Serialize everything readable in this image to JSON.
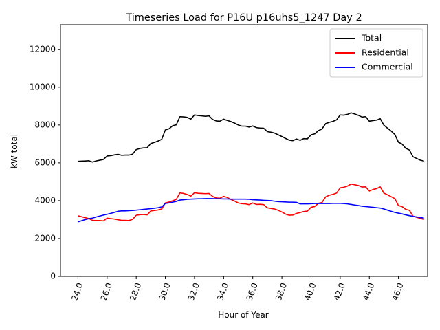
{
  "chart_data": {
    "type": "line",
    "title": "Timeseries Load for P16U p16uhs5_1247  Day 2",
    "xlabel": "Hour of Year",
    "ylabel": "kW total",
    "xlim": [
      22.8,
      48.0
    ],
    "ylim": [
      0,
      13300
    ],
    "x_ticks": [
      24,
      26,
      28,
      30,
      32,
      34,
      36,
      38,
      40,
      42,
      44,
      46
    ],
    "x_tick_labels": [
      "24.0",
      "26.0",
      "28.0",
      "30.0",
      "32.0",
      "34.0",
      "36.0",
      "38.0",
      "40.0",
      "42.0",
      "44.0",
      "46.0"
    ],
    "y_ticks": [
      0,
      2000,
      4000,
      6000,
      8000,
      10000,
      12000
    ],
    "y_tick_labels": [
      "0",
      "2000",
      "4000",
      "6000",
      "8000",
      "10000",
      "12000"
    ],
    "legend_position": "top-right",
    "x": [
      24.0,
      24.25,
      24.5,
      24.75,
      25.0,
      25.25,
      25.5,
      25.75,
      26.0,
      26.25,
      26.5,
      26.75,
      27.0,
      27.25,
      27.5,
      27.75,
      28.0,
      28.25,
      28.5,
      28.75,
      29.0,
      29.25,
      29.5,
      29.75,
      30.0,
      30.25,
      30.5,
      30.75,
      31.0,
      31.25,
      31.5,
      31.75,
      32.0,
      32.25,
      32.5,
      32.75,
      33.0,
      33.25,
      33.5,
      33.75,
      34.0,
      34.25,
      34.5,
      34.75,
      35.0,
      35.25,
      35.5,
      35.75,
      36.0,
      36.25,
      36.5,
      36.75,
      37.0,
      37.25,
      37.5,
      37.75,
      38.0,
      38.25,
      38.5,
      38.75,
      39.0,
      39.25,
      39.5,
      39.75,
      40.0,
      40.25,
      40.5,
      40.75,
      41.0,
      41.25,
      41.5,
      41.75,
      42.0,
      42.25,
      42.5,
      42.75,
      43.0,
      43.25,
      43.5,
      43.75,
      44.0,
      44.25,
      44.5,
      44.75,
      45.0,
      45.25,
      45.5,
      45.75,
      46.0,
      46.25,
      46.5,
      46.75,
      47.0,
      47.25,
      47.5,
      47.75
    ],
    "series": [
      {
        "name": "Total",
        "color": "#000000",
        "values": [
          6080,
          6090,
          6100,
          6110,
          6040,
          6100,
          6140,
          6180,
          6360,
          6380,
          6420,
          6450,
          6400,
          6410,
          6410,
          6460,
          6700,
          6760,
          6790,
          6800,
          7020,
          7080,
          7150,
          7240,
          7740,
          7800,
          7960,
          8010,
          8440,
          8430,
          8400,
          8310,
          8530,
          8500,
          8480,
          8460,
          8480,
          8290,
          8210,
          8200,
          8310,
          8240,
          8180,
          8100,
          8000,
          7940,
          7940,
          7890,
          7950,
          7860,
          7840,
          7830,
          7650,
          7620,
          7570,
          7480,
          7390,
          7290,
          7200,
          7170,
          7260,
          7190,
          7280,
          7270,
          7480,
          7530,
          7700,
          7790,
          8070,
          8140,
          8190,
          8270,
          8530,
          8520,
          8560,
          8640,
          8580,
          8510,
          8420,
          8440,
          8200,
          8230,
          8260,
          8330,
          7990,
          7830,
          7680,
          7500,
          7090,
          6990,
          6770,
          6680,
          6320,
          6230,
          6140,
          6090
        ]
      },
      {
        "name": "Residential",
        "color": "#ff0000",
        "values": [
          3200,
          3150,
          3100,
          3050,
          2960,
          2950,
          2950,
          2930,
          3080,
          3050,
          3030,
          2990,
          2960,
          2960,
          2950,
          3010,
          3230,
          3260,
          3270,
          3250,
          3460,
          3480,
          3510,
          3560,
          3880,
          3930,
          3990,
          4070,
          4410,
          4380,
          4330,
          4240,
          4420,
          4390,
          4380,
          4370,
          4380,
          4220,
          4140,
          4130,
          4230,
          4170,
          4060,
          3980,
          3880,
          3840,
          3830,
          3790,
          3880,
          3800,
          3810,
          3790,
          3620,
          3590,
          3560,
          3490,
          3400,
          3290,
          3230,
          3240,
          3330,
          3370,
          3430,
          3450,
          3650,
          3690,
          3860,
          3900,
          4200,
          4290,
          4330,
          4400,
          4680,
          4710,
          4770,
          4880,
          4840,
          4800,
          4720,
          4730,
          4510,
          4590,
          4640,
          4730,
          4400,
          4310,
          4210,
          4110,
          3740,
          3690,
          3540,
          3490,
          3180,
          3120,
          3060,
          3010
        ]
      },
      {
        "name": "Commercial",
        "color": "#0000ff",
        "values": [
          2880,
          2940,
          3000,
          3050,
          3080,
          3140,
          3190,
          3240,
          3280,
          3330,
          3380,
          3440,
          3460,
          3460,
          3470,
          3480,
          3500,
          3520,
          3540,
          3560,
          3580,
          3600,
          3630,
          3670,
          3850,
          3880,
          3920,
          3960,
          4030,
          4050,
          4070,
          4080,
          4090,
          4100,
          4100,
          4110,
          4110,
          4110,
          4100,
          4100,
          4090,
          4090,
          4080,
          4080,
          4080,
          4080,
          4080,
          4070,
          4050,
          4040,
          4030,
          4020,
          4010,
          4000,
          3970,
          3950,
          3940,
          3930,
          3920,
          3920,
          3910,
          3830,
          3830,
          3830,
          3840,
          3850,
          3850,
          3850,
          3850,
          3850,
          3860,
          3860,
          3860,
          3850,
          3830,
          3800,
          3770,
          3740,
          3710,
          3690,
          3670,
          3650,
          3630,
          3610,
          3560,
          3500,
          3440,
          3380,
          3340,
          3300,
          3250,
          3210,
          3170,
          3140,
          3110,
          3080
        ]
      }
    ]
  }
}
